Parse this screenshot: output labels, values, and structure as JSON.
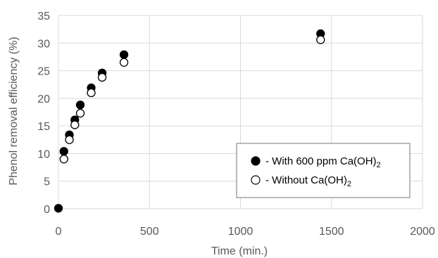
{
  "chart_data": {
    "type": "scatter",
    "title": "",
    "xlabel": "Time (min.)",
    "ylabel": "Phenol removal efficiency (%)",
    "xlim": [
      0,
      2000
    ],
    "ylim": [
      0,
      35
    ],
    "xticks": [
      0,
      500,
      1000,
      1500,
      2000
    ],
    "yticks": [
      0,
      5,
      10,
      15,
      20,
      25,
      30,
      35
    ],
    "xtick_labels": [
      "0",
      "500",
      "1000",
      "1500",
      "2000"
    ],
    "ytick_labels": [
      "0",
      "5",
      "10",
      "15",
      "20",
      "25",
      "30",
      "35"
    ],
    "grid": true,
    "legend_position": "bottom-right",
    "series": [
      {
        "name": "- With 600 ppm Ca(OH)2",
        "name_prefix": "- With 600 ppm Ca(OH)",
        "name_subscript": "2",
        "marker": "filled-circle",
        "color": "#000000",
        "x": [
          0,
          30,
          60,
          90,
          120,
          180,
          240,
          360,
          1440
        ],
        "y": [
          0.1,
          10.4,
          13.4,
          16.1,
          18.8,
          21.9,
          24.6,
          27.9,
          31.7
        ]
      },
      {
        "name": "- Without Ca(OH)2",
        "name_prefix": "- Without Ca(OH)",
        "name_subscript": "2",
        "marker": "open-circle",
        "color": "#000000",
        "x": [
          30,
          60,
          90,
          120,
          180,
          240,
          360,
          1440
        ],
        "y": [
          9.0,
          12.5,
          15.2,
          17.3,
          21.0,
          23.8,
          26.5,
          30.6
        ]
      }
    ]
  }
}
